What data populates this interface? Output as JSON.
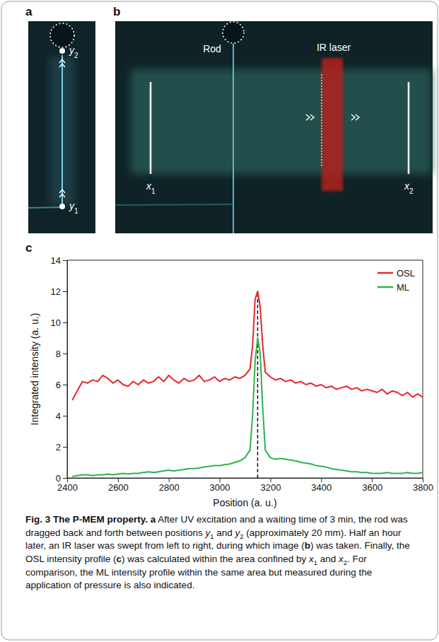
{
  "figure": {
    "panel_a": {
      "label": "a",
      "y2": {
        "text": "y",
        "sub": "2"
      },
      "y1": {
        "text": "y",
        "sub": "1"
      }
    },
    "panel_b": {
      "label": "b",
      "rod": "Rod",
      "laser": "IR laser",
      "x1": {
        "text": "x",
        "sub": "1"
      },
      "x2": {
        "text": "x",
        "sub": "2"
      }
    },
    "panel_c": {
      "label": "c"
    },
    "caption": [
      {
        "text": "Fig. 3 The P-MEM property. a",
        "style": "bold"
      },
      {
        "text": " After UV excitation and a waiting time of 3 min, the rod was dragged back and forth between positions ",
        "style": "normal"
      },
      {
        "text": "y",
        "style": "italic"
      },
      {
        "text": "1",
        "style": "sub"
      },
      {
        "text": " and ",
        "style": "normal"
      },
      {
        "text": "y",
        "style": "italic"
      },
      {
        "text": "2",
        "style": "sub"
      },
      {
        "text": " (approximately 20 mm). Half an hour later, an IR laser was swept from left to right, during which image (",
        "style": "normal"
      },
      {
        "text": "b",
        "style": "bold"
      },
      {
        "text": ") was taken. Finally, the OSL intensity profile (",
        "style": "normal"
      },
      {
        "text": "c",
        "style": "bold"
      },
      {
        "text": ") was calculated within the area confined by ",
        "style": "normal"
      },
      {
        "text": "x",
        "style": "italic"
      },
      {
        "text": "1",
        "style": "sub"
      },
      {
        "text": " and ",
        "style": "normal"
      },
      {
        "text": "x",
        "style": "italic"
      },
      {
        "text": "2",
        "style": "sub"
      },
      {
        "text": ". For comparison, the ML intensity profile within the same area but measured during the application of pressure is also indicated.",
        "style": "normal"
      }
    ]
  },
  "chart_data": {
    "type": "line",
    "xlabel": "Position (a. u.)",
    "ylabel": "Integrated intensity (a. u.)",
    "x": [
      2420,
      2440,
      2460,
      2480,
      2500,
      2520,
      2540,
      2560,
      2580,
      2600,
      2620,
      2640,
      2660,
      2680,
      2700,
      2720,
      2740,
      2760,
      2780,
      2800,
      2820,
      2840,
      2860,
      2880,
      2900,
      2920,
      2940,
      2960,
      2980,
      3000,
      3020,
      3040,
      3060,
      3080,
      3100,
      3120,
      3130,
      3140,
      3150,
      3160,
      3170,
      3180,
      3200,
      3220,
      3240,
      3260,
      3280,
      3300,
      3320,
      3340,
      3360,
      3380,
      3400,
      3420,
      3440,
      3460,
      3480,
      3500,
      3520,
      3540,
      3560,
      3580,
      3600,
      3620,
      3640,
      3660,
      3680,
      3700,
      3720,
      3740,
      3760,
      3780,
      3800
    ],
    "series": [
      {
        "name": "OSL",
        "color": "#e8262b",
        "values": [
          5.0,
          5.6,
          6.2,
          6.1,
          6.3,
          6.2,
          6.6,
          6.4,
          6.1,
          6.3,
          6.0,
          5.9,
          6.2,
          6.0,
          6.3,
          6.1,
          6.2,
          6.5,
          6.2,
          6.6,
          6.3,
          6.1,
          6.4,
          6.2,
          6.3,
          6.6,
          6.2,
          6.3,
          6.5,
          6.2,
          6.4,
          6.3,
          6.5,
          6.4,
          6.6,
          7.0,
          8.5,
          11.5,
          12.0,
          11.0,
          8.5,
          6.8,
          6.5,
          6.3,
          6.4,
          6.2,
          6.3,
          6.1,
          6.2,
          6.0,
          6.1,
          5.9,
          6.0,
          5.8,
          5.9,
          5.7,
          5.8,
          5.9,
          5.7,
          5.8,
          5.6,
          5.7,
          5.6,
          5.5,
          5.7,
          5.4,
          5.6,
          5.5,
          5.3,
          5.5,
          5.2,
          5.4,
          5.2
        ]
      },
      {
        "name": "ML",
        "color": "#2db34a",
        "values": [
          0.1,
          0.15,
          0.2,
          0.2,
          0.15,
          0.2,
          0.2,
          0.25,
          0.2,
          0.25,
          0.3,
          0.25,
          0.3,
          0.3,
          0.35,
          0.4,
          0.35,
          0.4,
          0.45,
          0.5,
          0.45,
          0.5,
          0.55,
          0.6,
          0.6,
          0.65,
          0.7,
          0.75,
          0.8,
          0.8,
          0.85,
          0.9,
          1.0,
          1.1,
          1.3,
          1.8,
          4.0,
          7.5,
          9.0,
          8.0,
          4.5,
          1.8,
          1.3,
          1.2,
          1.25,
          1.2,
          1.15,
          1.1,
          1.0,
          0.95,
          0.9,
          0.8,
          0.75,
          0.7,
          0.6,
          0.55,
          0.5,
          0.45,
          0.4,
          0.4,
          0.35,
          0.35,
          0.3,
          0.3,
          0.3,
          0.35,
          0.3,
          0.3,
          0.3,
          0.35,
          0.3,
          0.3,
          0.35
        ]
      }
    ],
    "vline_x": 3150,
    "xlim": [
      2400,
      3800
    ],
    "ylim": [
      0,
      14
    ],
    "xticks": [
      2400,
      2600,
      2800,
      3000,
      3200,
      3400,
      3600,
      3800
    ],
    "yticks": [
      0,
      2,
      4,
      6,
      8,
      10,
      12,
      14
    ],
    "legend": "upper right",
    "grid": false
  }
}
